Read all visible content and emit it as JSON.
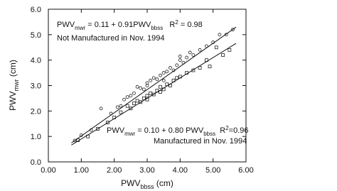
{
  "chart_data": {
    "type": "scatter",
    "xlim": [
      0,
      6
    ],
    "ylim": [
      0,
      6
    ],
    "xticks": [
      {
        "value": 0,
        "label": "0.00"
      },
      {
        "value": 1,
        "label": "1.00"
      },
      {
        "value": 2,
        "label": "2.00"
      },
      {
        "value": 3,
        "label": "3.00"
      },
      {
        "value": 4,
        "label": "4.00"
      },
      {
        "value": 5,
        "label": "5.00"
      },
      {
        "value": 6,
        "label": "6.00"
      }
    ],
    "yticks": [
      {
        "value": 0,
        "label": "0.0"
      },
      {
        "value": 1,
        "label": "1.0"
      },
      {
        "value": 2,
        "label": "2.0"
      },
      {
        "value": 3,
        "label": "3.0"
      },
      {
        "value": 4,
        "label": "4.0"
      },
      {
        "value": 5,
        "label": "5.0"
      },
      {
        "value": 6,
        "label": "6.0"
      }
    ],
    "x_label": {
      "text": "PWV",
      "sub": "bbss",
      "unit": " (cm)"
    },
    "y_label": {
      "text": "PWV",
      "sub": "mwr",
      "unit": " (cm)"
    },
    "series": [
      {
        "marker": "circle",
        "color": "#222222",
        "x": [
          0.8,
          1.0,
          1.3,
          1.6,
          1.9,
          2.1,
          2.3,
          2.4,
          2.5,
          2.6,
          2.7,
          2.8,
          2.9,
          3.0,
          3.0,
          3.1,
          3.2,
          3.3,
          3.4,
          3.5,
          3.6,
          3.7,
          3.8,
          3.9,
          4.0,
          4.1,
          4.2,
          4.3,
          4.4,
          4.6,
          4.8,
          5.0,
          5.2,
          5.4,
          5.6,
          2.2,
          3.5,
          4.0
        ],
        "values": [
          0.84,
          1.05,
          1.25,
          2.1,
          1.9,
          2.15,
          2.45,
          2.55,
          2.6,
          2.7,
          2.95,
          2.9,
          2.85,
          3.1,
          3.0,
          3.2,
          3.3,
          3.25,
          3.4,
          3.5,
          3.55,
          3.7,
          3.6,
          3.8,
          4.0,
          3.9,
          4.1,
          4.3,
          4.2,
          4.4,
          4.55,
          4.7,
          5.0,
          5.0,
          5.2,
          2.2,
          3.2,
          4.15
        ]
      },
      {
        "marker": "square",
        "color": "#222222",
        "x": [
          0.9,
          1.2,
          1.5,
          1.8,
          2.0,
          2.2,
          2.4,
          2.5,
          2.6,
          2.7,
          2.8,
          2.9,
          3.0,
          3.1,
          3.2,
          3.3,
          3.4,
          3.5,
          3.6,
          3.7,
          3.8,
          3.9,
          4.0,
          4.2,
          4.4,
          4.6,
          4.8,
          4.9,
          5.1,
          5.3,
          5.5,
          3.0,
          3.4
        ],
        "values": [
          0.85,
          1.0,
          1.3,
          1.55,
          1.75,
          1.95,
          2.2,
          2.1,
          2.3,
          2.4,
          2.35,
          2.5,
          2.6,
          2.7,
          2.65,
          2.8,
          2.95,
          2.85,
          3.05,
          3.0,
          3.2,
          3.3,
          3.35,
          3.5,
          3.6,
          3.7,
          4.0,
          3.75,
          4.5,
          4.2,
          4.4,
          2.45,
          2.75
        ]
      }
    ],
    "fits": [
      {
        "lhs": "PWV",
        "lhs_sub": "mwr",
        "eq": " = ",
        "intercept": 0.11,
        "plus": " + ",
        "slope": 0.91,
        "rhs": "PWV",
        "rhs_sub": "bbss",
        "r2_label": "   R",
        "r2_sup": "2",
        "r2_eq": " = ",
        "r2": 0.98,
        "note": "Not Manufactured in Nov. 1994",
        "x_range": [
          0.7,
          5.7
        ]
      },
      {
        "lhs": "PWV",
        "lhs_sub": "mwr",
        "eq": " = ",
        "intercept": {
          "value": 0.1,
          "label": "0.10"
        },
        "plus": " + ",
        "slope": {
          "value": 0.8,
          "label": "0.80"
        },
        "rhs": " PWV",
        "rhs_sub": "bbss",
        "r2_label": "  R",
        "r2_sup": "2",
        "r2_eq": "=",
        "r2": 0.96,
        "note": "Manufactured in Nov. 1994",
        "x_range": [
          0.7,
          5.7
        ]
      }
    ]
  }
}
